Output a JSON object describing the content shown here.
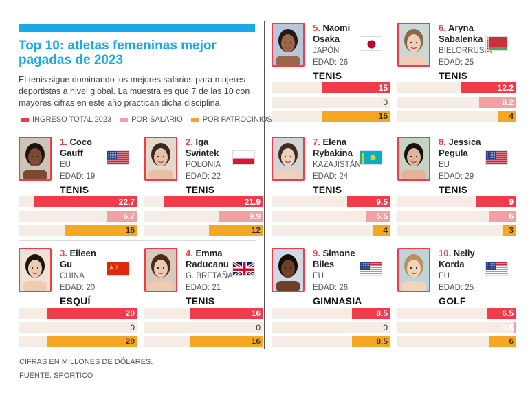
{
  "header": {
    "title": "Top 10: atletas femeninas mejor pagadas de 2023",
    "intro": "El tenis sigue dominando los mejores salarios para mujeres deportistas a nivel global. La muestra es que 7 de las 10 con mayores cifras en este año practican dicha disciplina."
  },
  "colors": {
    "accent": "#1aa8e6",
    "total": "#ef3b4a",
    "salary": "#f2a0a3",
    "sponsors": "#f5a623",
    "track": "#f6ece6"
  },
  "chart_data": {
    "type": "bar",
    "title": "Top 10: atletas femeninas mejor pagadas de 2023",
    "unit": "millones de dólares",
    "max": 22.7,
    "legend": [
      {
        "key": "total",
        "label": "INGRESO TOTAL 2023"
      },
      {
        "key": "salary",
        "label": "POR SALARIO"
      },
      {
        "key": "sponsors",
        "label": "POR PATROCINIOS"
      }
    ],
    "athletes": [
      {
        "rank": "1.",
        "first": "Coco",
        "last": "Gauff",
        "country": "EU",
        "age": "EDAD: 19",
        "sport": "TENIS",
        "flag": "us-flag",
        "total": 22.7,
        "salary": 6.7,
        "sponsors": 16,
        "total_label": "22.7",
        "salary_label": "6.7",
        "sponsors_label": "16"
      },
      {
        "rank": "2.",
        "first": "Iga",
        "last": "Swiatek",
        "country": "POLONIA",
        "age": "EDAD: 22",
        "sport": "TENIS",
        "flag": "poland-flag",
        "total": 21.9,
        "salary": 9.9,
        "sponsors": 12,
        "total_label": "21.9",
        "salary_label": "9.9",
        "sponsors_label": "12"
      },
      {
        "rank": "3.",
        "first": "Eileen",
        "last": "Gu",
        "country": "CHINA",
        "age": "EDAD: 20",
        "sport": "ESQUÍ",
        "flag": "china-flag",
        "total": 20,
        "salary": 0,
        "sponsors": 20,
        "total_label": "20",
        "salary_label": "0",
        "sponsors_label": "20"
      },
      {
        "rank": "4.",
        "first": "Emma",
        "last": "Raducanu",
        "country": "G. BRETAÑA",
        "age": "EDAD: 21",
        "sport": "TENIS",
        "flag": "uk-flag",
        "total": 16,
        "salary": 0,
        "sponsors": 16,
        "total_label": "16",
        "salary_label": "0",
        "sponsors_label": "16"
      },
      {
        "rank": "5.",
        "first": "Naomi",
        "last": "Osaka",
        "country": "JAPÓN",
        "age": "EDAD: 26",
        "sport": "TENIS",
        "flag": "japan-flag",
        "total": 15,
        "salary": 0,
        "sponsors": 15,
        "total_label": "15",
        "salary_label": "0",
        "sponsors_label": "15"
      },
      {
        "rank": "6.",
        "first": "Aryna",
        "last": "Sabalenka",
        "country": "BIELORRUSIA",
        "age": "EDAD: 25",
        "sport": "TENIS",
        "flag": "belarus-flag",
        "total": 12.2,
        "salary": 8.2,
        "sponsors": 4,
        "total_label": "12.2",
        "salary_label": "8.2",
        "sponsors_label": "4"
      },
      {
        "rank": "7.",
        "first": "Elena",
        "last": "Rybakina",
        "country": "KAZAJISTÁN",
        "age": "EDAD: 24",
        "sport": "TENIS",
        "flag": "kazakhstan-flag",
        "total": 9.5,
        "salary": 5.5,
        "sponsors": 4,
        "total_label": "9.5",
        "salary_label": "5.5",
        "sponsors_label": "4"
      },
      {
        "rank": "8.",
        "first": "Jessica",
        "last": "Pegula",
        "country": "EU",
        "age": "EDAD: 29",
        "sport": "TENIS",
        "flag": "us-flag",
        "total": 9,
        "salary": 6,
        "sponsors": 3,
        "total_label": "9",
        "salary_label": "6",
        "sponsors_label": "3"
      },
      {
        "rank": "9.",
        "first": "Simone",
        "last": "Biles",
        "country": "EU",
        "age": "EDAD: 26",
        "sport": "GIMNASIA",
        "flag": "us-flag",
        "total": 8.5,
        "salary": 0,
        "sponsors": 8.5,
        "total_label": "8.5",
        "salary_label": "0",
        "sponsors_label": "8.5"
      },
      {
        "rank": "10.",
        "first": "Nelly",
        "last": "Korda",
        "country": "EU",
        "age": "EDAD: 25",
        "sport": "GOLF",
        "flag": "us-flag",
        "total": 6.5,
        "salary": 0.5,
        "sponsors": 6,
        "total_label": "6.5",
        "salary_label": "0.5",
        "sponsors_label": "6"
      }
    ]
  },
  "footer": {
    "note": "CIFRAS EN MILLONES DE DÓLARES.",
    "source": "FUENTE: SPORTICO"
  }
}
